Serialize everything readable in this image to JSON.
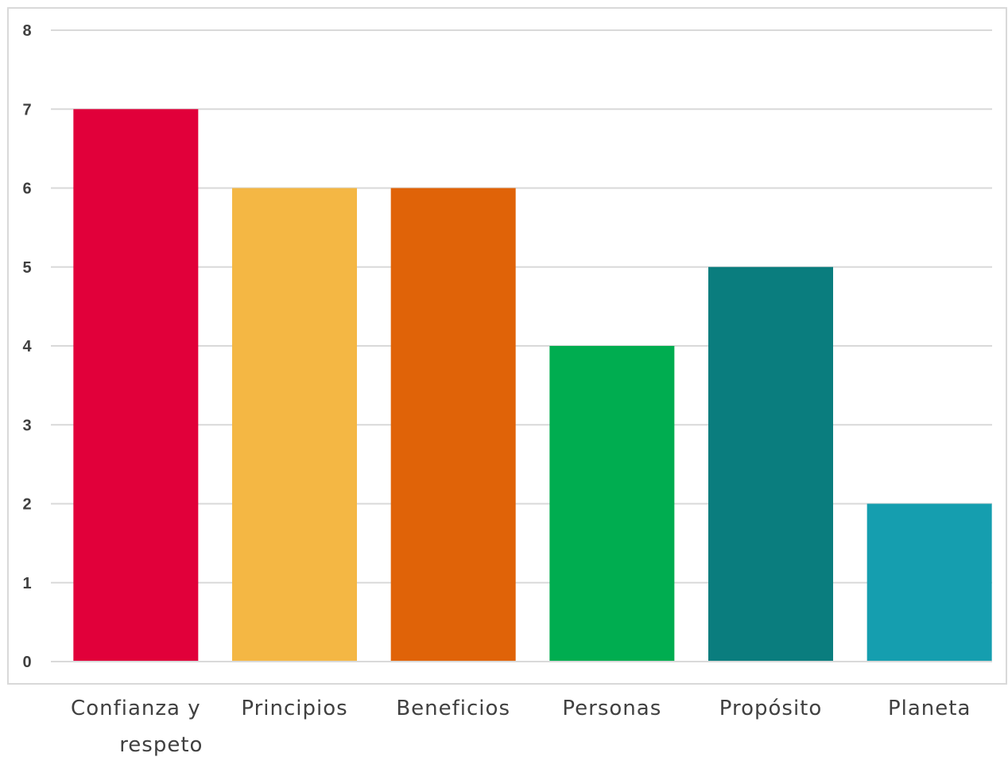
{
  "chart_data": {
    "type": "bar",
    "title": "",
    "xlabel": "",
    "ylabel": "",
    "categories": [
      [
        "Confianza y",
        "respeto"
      ],
      [
        "Principios"
      ],
      [
        "Beneficios"
      ],
      [
        "Personas"
      ],
      [
        "Propósito"
      ],
      [
        "Planeta"
      ]
    ],
    "values": [
      7,
      6,
      6,
      4,
      5,
      2
    ],
    "colors": [
      "#e1003a",
      "#f4b744",
      "#e06308",
      "#00ad50",
      "#0a7d7e",
      "#159eaf"
    ],
    "ylim": [
      0,
      8
    ],
    "yticks": [
      0,
      1,
      2,
      3,
      4,
      5,
      6,
      7,
      8
    ],
    "grid": true,
    "legend": "none"
  }
}
